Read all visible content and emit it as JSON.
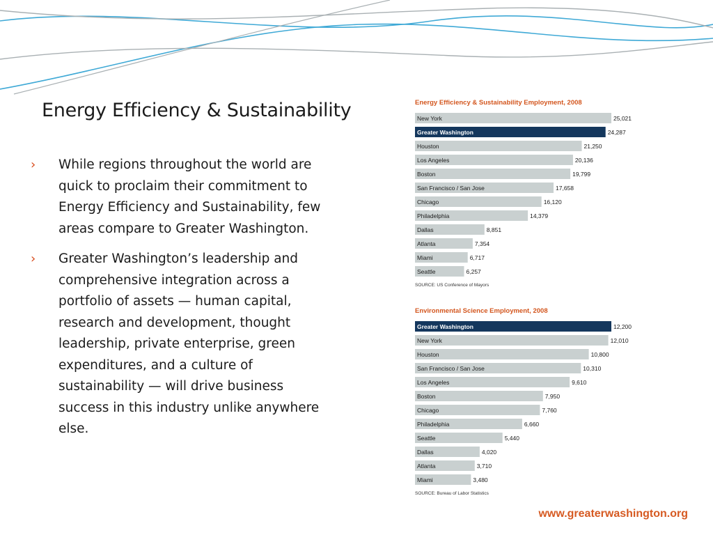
{
  "slide": {
    "title": "Energy Efficiency & Sustainability",
    "bullet_marker": "›",
    "bullets": [
      "While regions throughout the world are quick to proclaim their commitment to Energy Efficiency and Sustainability, few areas  compare to Greater Washington.",
      "Greater Washington’s leadership and comprehensive integration across a portfolio of assets — human capital, research and development, thought leadership, private enterprise, green expenditures, and a culture of sustainability — will drive business success in this industry unlike anywhere else."
    ],
    "footer_url": "www.greaterwashington.org"
  },
  "colors": {
    "accent": "#d3561e",
    "bullet_marker": "#d84a1b",
    "bar": "#c9d0d0",
    "bar_highlight": "#14375d",
    "decor_blue": "#3fa9d6",
    "decor_gray": "#a9b0b3"
  },
  "chart_data": [
    {
      "type": "bar",
      "orientation": "horizontal",
      "title": "Energy Efficiency & Sustainability Employment, 2008",
      "source": "SOURCE:  US Conference of Mayors",
      "highlight": "Greater Washington",
      "categories": [
        "New York",
        "Greater Washington",
        "Houston",
        "Los Angeles",
        "Boston",
        "San Francisco / San Jose",
        "Chicago",
        "Philadelphia",
        "Dallas",
        "Atlanta",
        "Miami",
        "Seattle"
      ],
      "values": [
        25021,
        24287,
        21250,
        20136,
        19799,
        17658,
        16120,
        14379,
        8851,
        7354,
        6717,
        6257
      ],
      "value_labels": [
        "25,021",
        "24,287",
        "21,250",
        "20,136",
        "19,799",
        "17,658",
        "16,120",
        "14,379",
        "8,851",
        "7,354",
        "6,717",
        "6,257"
      ]
    },
    {
      "type": "bar",
      "orientation": "horizontal",
      "title": "Environmental Science Employment, 2008",
      "source": "SOURCE:  Bureau of Labor Statistics",
      "highlight": "Greater Washington",
      "categories": [
        "Greater Washington",
        "New York",
        "Houston",
        "San Francisco / San Jose",
        "Los Angeles",
        "Boston",
        "Chicago",
        "Philadelphia",
        "Seattle",
        "Dallas",
        "Atlanta",
        "Miami"
      ],
      "values": [
        12200,
        12010,
        10800,
        10310,
        9610,
        7950,
        7760,
        6660,
        5440,
        4020,
        3710,
        3480
      ],
      "value_labels": [
        "12,200",
        "12,010",
        "10,800",
        "10,310",
        "9,610",
        "7,950",
        "7,760",
        "6,660",
        "5,440",
        "4,020",
        "3,710",
        "3,480"
      ]
    }
  ]
}
